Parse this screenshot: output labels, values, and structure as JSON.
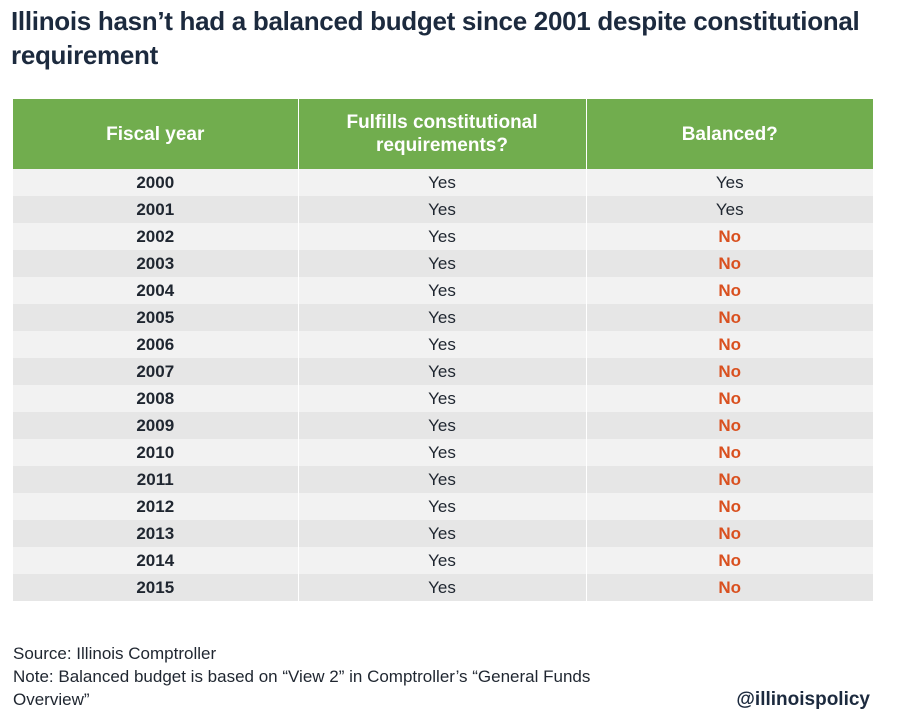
{
  "title": "Illinois hasn’t had a balanced budget since 2001 despite constitutional requirement",
  "colors": {
    "header_bg": "#71ad4e",
    "no_text": "#d9501f",
    "row_light": "#f2f2f2",
    "row_dark": "#e6e6e6"
  },
  "chart_data": {
    "type": "table",
    "title": "Illinois hasn’t had a balanced budget since 2001 despite constitutional requirement",
    "columns": [
      "Fiscal year",
      "Fulfills constitutional requirements?",
      "Balanced?"
    ],
    "rows": [
      [
        "2000",
        "Yes",
        "Yes"
      ],
      [
        "2001",
        "Yes",
        "Yes"
      ],
      [
        "2002",
        "Yes",
        "No"
      ],
      [
        "2003",
        "Yes",
        "No"
      ],
      [
        "2004",
        "Yes",
        "No"
      ],
      [
        "2005",
        "Yes",
        "No"
      ],
      [
        "2006",
        "Yes",
        "No"
      ],
      [
        "2007",
        "Yes",
        "No"
      ],
      [
        "2008",
        "Yes",
        "No"
      ],
      [
        "2009",
        "Yes",
        "No"
      ],
      [
        "2010",
        "Yes",
        "No"
      ],
      [
        "2011",
        "Yes",
        "No"
      ],
      [
        "2012",
        "Yes",
        "No"
      ],
      [
        "2013",
        "Yes",
        "No"
      ],
      [
        "2014",
        "Yes",
        "No"
      ],
      [
        "2015",
        "Yes",
        "No"
      ]
    ]
  },
  "footer": {
    "source": "Source: Illinois Comptroller",
    "note": "Note: Balanced budget is based on “View 2” in Comptroller’s “General Funds Overview”",
    "handle": "@illinoispolicy"
  }
}
